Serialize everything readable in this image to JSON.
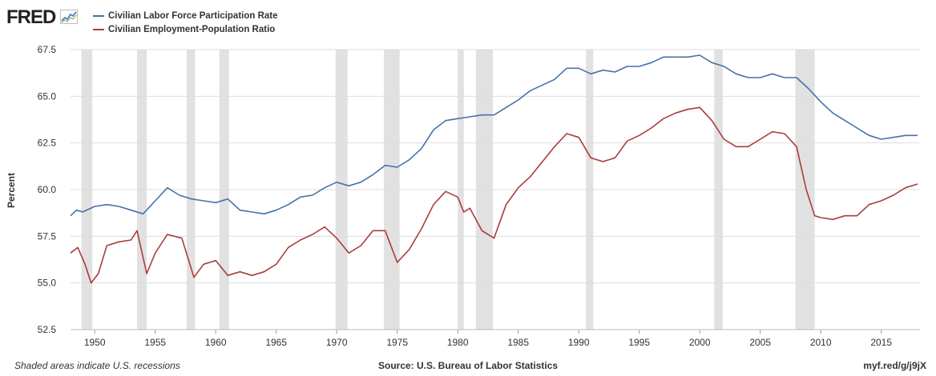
{
  "header": {
    "logo_text": "FRED",
    "logo_icon": "line-chart-icon"
  },
  "colors": {
    "series_1": "#4572a7",
    "series_2": "#aa3c3c",
    "recession": "#e1e1e1",
    "grid": "#dddddd"
  },
  "footer": {
    "note": "Shaded areas indicate U.S. recessions",
    "source": "Source: U.S. Bureau of Labor Statistics",
    "url": "myf.red/g/j9jX"
  },
  "chart_data": {
    "type": "line",
    "title": "",
    "xlabel": "",
    "ylabel": "Percent",
    "xlim": [
      1948.0,
      2018.2
    ],
    "ylim": [
      52.5,
      67.5
    ],
    "x_ticks": [
      1950,
      1955,
      1960,
      1965,
      1970,
      1975,
      1980,
      1985,
      1990,
      1995,
      2000,
      2005,
      2010,
      2015
    ],
    "y_ticks": [
      "52.5",
      "55.0",
      "57.5",
      "60.0",
      "62.5",
      "65.0",
      "67.5"
    ],
    "grid": true,
    "legend_placement": "top-left",
    "recessions": [
      [
        1948.9,
        1949.8
      ],
      [
        1953.5,
        1954.3
      ],
      [
        1957.6,
        1958.3
      ],
      [
        1960.3,
        1961.1
      ],
      [
        1969.9,
        1970.9
      ],
      [
        1973.9,
        1975.2
      ],
      [
        1980.0,
        1980.5
      ],
      [
        1981.5,
        1982.9
      ],
      [
        1990.6,
        1991.2
      ],
      [
        2001.2,
        2001.9
      ],
      [
        2007.9,
        2009.5
      ]
    ],
    "series": [
      {
        "name": "Civilian Labor Force Participation Rate",
        "points": [
          [
            1948.0,
            58.6
          ],
          [
            1948.5,
            58.9
          ],
          [
            1949.0,
            58.8
          ],
          [
            1950.0,
            59.1
          ],
          [
            1951.0,
            59.2
          ],
          [
            1952.0,
            59.1
          ],
          [
            1953.0,
            58.9
          ],
          [
            1954.0,
            58.7
          ],
          [
            1955.0,
            59.4
          ],
          [
            1956.0,
            60.1
          ],
          [
            1957.0,
            59.7
          ],
          [
            1958.0,
            59.5
          ],
          [
            1959.0,
            59.4
          ],
          [
            1960.0,
            59.3
          ],
          [
            1961.0,
            59.5
          ],
          [
            1962.0,
            58.9
          ],
          [
            1963.0,
            58.8
          ],
          [
            1964.0,
            58.7
          ],
          [
            1965.0,
            58.9
          ],
          [
            1966.0,
            59.2
          ],
          [
            1967.0,
            59.6
          ],
          [
            1968.0,
            59.7
          ],
          [
            1969.0,
            60.1
          ],
          [
            1970.0,
            60.4
          ],
          [
            1971.0,
            60.2
          ],
          [
            1972.0,
            60.4
          ],
          [
            1973.0,
            60.8
          ],
          [
            1974.0,
            61.3
          ],
          [
            1975.0,
            61.2
          ],
          [
            1976.0,
            61.6
          ],
          [
            1977.0,
            62.2
          ],
          [
            1978.0,
            63.2
          ],
          [
            1979.0,
            63.7
          ],
          [
            1980.0,
            63.8
          ],
          [
            1981.0,
            63.9
          ],
          [
            1982.0,
            64.0
          ],
          [
            1983.0,
            64.0
          ],
          [
            1984.0,
            64.4
          ],
          [
            1985.0,
            64.8
          ],
          [
            1986.0,
            65.3
          ],
          [
            1987.0,
            65.6
          ],
          [
            1988.0,
            65.9
          ],
          [
            1989.0,
            66.5
          ],
          [
            1990.0,
            66.5
          ],
          [
            1991.0,
            66.2
          ],
          [
            1992.0,
            66.4
          ],
          [
            1993.0,
            66.3
          ],
          [
            1994.0,
            66.6
          ],
          [
            1995.0,
            66.6
          ],
          [
            1996.0,
            66.8
          ],
          [
            1997.0,
            67.1
          ],
          [
            1998.0,
            67.1
          ],
          [
            1999.0,
            67.1
          ],
          [
            2000.0,
            67.2
          ],
          [
            2001.0,
            66.8
          ],
          [
            2002.0,
            66.6
          ],
          [
            2003.0,
            66.2
          ],
          [
            2004.0,
            66.0
          ],
          [
            2005.0,
            66.0
          ],
          [
            2006.0,
            66.2
          ],
          [
            2007.0,
            66.0
          ],
          [
            2008.0,
            66.0
          ],
          [
            2009.0,
            65.4
          ],
          [
            2010.0,
            64.7
          ],
          [
            2011.0,
            64.1
          ],
          [
            2012.0,
            63.7
          ],
          [
            2013.0,
            63.3
          ],
          [
            2014.0,
            62.9
          ],
          [
            2015.0,
            62.7
          ],
          [
            2016.0,
            62.8
          ],
          [
            2017.0,
            62.9
          ],
          [
            2018.0,
            62.9
          ]
        ]
      },
      {
        "name": "Civilian Employment-Population Ratio",
        "points": [
          [
            1948.0,
            56.6
          ],
          [
            1948.6,
            56.9
          ],
          [
            1949.2,
            56.0
          ],
          [
            1949.7,
            55.0
          ],
          [
            1950.3,
            55.5
          ],
          [
            1951.0,
            57.0
          ],
          [
            1952.0,
            57.2
          ],
          [
            1953.0,
            57.3
          ],
          [
            1953.5,
            57.8
          ],
          [
            1954.3,
            55.5
          ],
          [
            1955.0,
            56.6
          ],
          [
            1956.0,
            57.6
          ],
          [
            1957.2,
            57.4
          ],
          [
            1958.2,
            55.3
          ],
          [
            1959.0,
            56.0
          ],
          [
            1960.0,
            56.2
          ],
          [
            1961.0,
            55.4
          ],
          [
            1962.0,
            55.6
          ],
          [
            1963.0,
            55.4
          ],
          [
            1964.0,
            55.6
          ],
          [
            1965.0,
            56.0
          ],
          [
            1966.0,
            56.9
          ],
          [
            1967.0,
            57.3
          ],
          [
            1968.0,
            57.6
          ],
          [
            1969.0,
            58.0
          ],
          [
            1970.0,
            57.4
          ],
          [
            1971.0,
            56.6
          ],
          [
            1972.0,
            57.0
          ],
          [
            1973.0,
            57.8
          ],
          [
            1974.0,
            57.8
          ],
          [
            1975.0,
            56.1
          ],
          [
            1976.0,
            56.8
          ],
          [
            1977.0,
            57.9
          ],
          [
            1978.0,
            59.2
          ],
          [
            1979.0,
            59.9
          ],
          [
            1980.0,
            59.6
          ],
          [
            1980.5,
            58.8
          ],
          [
            1981.0,
            59.0
          ],
          [
            1982.0,
            57.8
          ],
          [
            1983.0,
            57.4
          ],
          [
            1984.0,
            59.2
          ],
          [
            1985.0,
            60.1
          ],
          [
            1986.0,
            60.7
          ],
          [
            1987.0,
            61.5
          ],
          [
            1988.0,
            62.3
          ],
          [
            1989.0,
            63.0
          ],
          [
            1990.0,
            62.8
          ],
          [
            1991.0,
            61.7
          ],
          [
            1992.0,
            61.5
          ],
          [
            1993.0,
            61.7
          ],
          [
            1994.0,
            62.6
          ],
          [
            1995.0,
            62.9
          ],
          [
            1996.0,
            63.3
          ],
          [
            1997.0,
            63.8
          ],
          [
            1998.0,
            64.1
          ],
          [
            1999.0,
            64.3
          ],
          [
            2000.0,
            64.4
          ],
          [
            2001.0,
            63.7
          ],
          [
            2002.0,
            62.7
          ],
          [
            2003.0,
            62.3
          ],
          [
            2004.0,
            62.3
          ],
          [
            2005.0,
            62.7
          ],
          [
            2006.0,
            63.1
          ],
          [
            2007.0,
            63.0
          ],
          [
            2008.0,
            62.3
          ],
          [
            2008.8,
            60.0
          ],
          [
            2009.5,
            58.6
          ],
          [
            2010.0,
            58.5
          ],
          [
            2011.0,
            58.4
          ],
          [
            2012.0,
            58.6
          ],
          [
            2013.0,
            58.6
          ],
          [
            2014.0,
            59.2
          ],
          [
            2015.0,
            59.4
          ],
          [
            2016.0,
            59.7
          ],
          [
            2017.0,
            60.1
          ],
          [
            2018.0,
            60.3
          ]
        ]
      }
    ]
  }
}
